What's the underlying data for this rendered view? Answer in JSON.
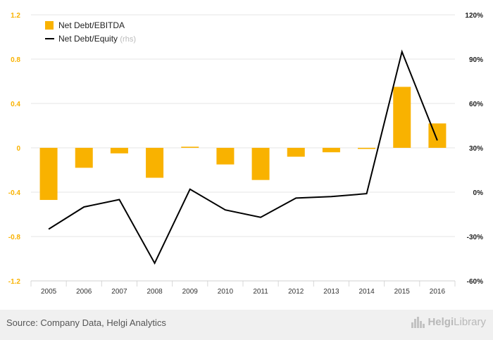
{
  "chart_data": {
    "type": "bar",
    "categories": [
      "2005",
      "2006",
      "2007",
      "2008",
      "2009",
      "2010",
      "2011",
      "2012",
      "2013",
      "2014",
      "2015",
      "2016"
    ],
    "series": [
      {
        "name": "Net Debt/EBITDA",
        "kind": "bar",
        "axis": "left",
        "color": "#f9b200",
        "values": [
          -0.47,
          -0.18,
          -0.05,
          -0.27,
          0.01,
          -0.15,
          -0.29,
          -0.08,
          -0.04,
          -0.01,
          0.55,
          0.22
        ]
      },
      {
        "name": "Net Debt/Equity",
        "name_suffix": "(rhs)",
        "kind": "line",
        "axis": "right",
        "color": "#000000",
        "values": [
          -25,
          -10,
          -5,
          -48,
          2,
          -12,
          -17,
          -4,
          -3,
          -1,
          95,
          35
        ]
      }
    ],
    "left_axis": {
      "ylim": [
        -1.2,
        1.2
      ],
      "ticks": [
        "1.2",
        "0.8",
        "0.4",
        "0",
        "-0.4",
        "-0.8",
        "-1.2"
      ],
      "tick_values": [
        1.2,
        0.8,
        0.4,
        0,
        -0.4,
        -0.8,
        -1.2
      ],
      "tick_color": "#f9b200"
    },
    "right_axis": {
      "ylim": [
        -60,
        120
      ],
      "ticks": [
        "120%",
        "90%",
        "60%",
        "30%",
        "0%",
        "-30%",
        "-60%"
      ],
      "tick_values": [
        120,
        90,
        60,
        30,
        0,
        -30,
        -60
      ]
    },
    "grid": true,
    "legend_position": "top-left"
  },
  "footer": {
    "source": "Source: Company Data, Helgi Analytics",
    "brand_prefix": "Helgi",
    "brand_suffix": "Library"
  }
}
